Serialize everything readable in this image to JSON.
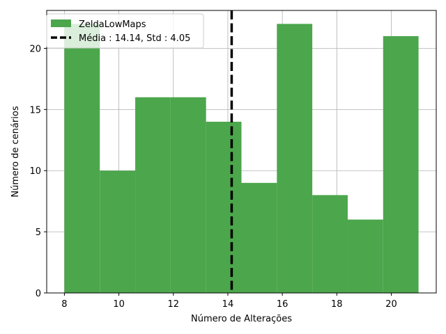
{
  "chart_data": {
    "type": "bar",
    "subtype": "histogram",
    "xlabel": "Número de Alterações",
    "ylabel": "Número de cenários",
    "xlim": [
      7.35,
      21.65
    ],
    "ylim": [
      0,
      23.1
    ],
    "xticks": [
      8,
      10,
      12,
      14,
      16,
      18,
      20
    ],
    "yticks": [
      0,
      5,
      10,
      15,
      20
    ],
    "bins": [
      {
        "x0": 8.0,
        "x1": 9.3,
        "count": 22
      },
      {
        "x0": 9.3,
        "x1": 10.6,
        "count": 10
      },
      {
        "x0": 10.6,
        "x1": 11.9,
        "count": 16
      },
      {
        "x0": 11.9,
        "x1": 13.2,
        "count": 16
      },
      {
        "x0": 13.2,
        "x1": 14.5,
        "count": 14
      },
      {
        "x0": 14.5,
        "x1": 15.8,
        "count": 9
      },
      {
        "x0": 15.8,
        "x1": 17.1,
        "count": 22
      },
      {
        "x0": 17.1,
        "x1": 18.4,
        "count": 8
      },
      {
        "x0": 18.4,
        "x1": 19.7,
        "count": 6
      },
      {
        "x0": 19.7,
        "x1": 21.0,
        "count": 21
      }
    ],
    "bar_color": "#4ca64c",
    "mean_line": {
      "x": 14.14,
      "color": "#000000",
      "style": "dashed"
    },
    "grid": true,
    "legend": {
      "placement": "top-left",
      "entries": [
        {
          "label": "ZeldaLowMaps",
          "kind": "patch",
          "color": "#4ca64c"
        },
        {
          "label": "Média : 14.14, Std : 4.05",
          "kind": "dashed-line",
          "color": "#000000"
        }
      ]
    }
  }
}
